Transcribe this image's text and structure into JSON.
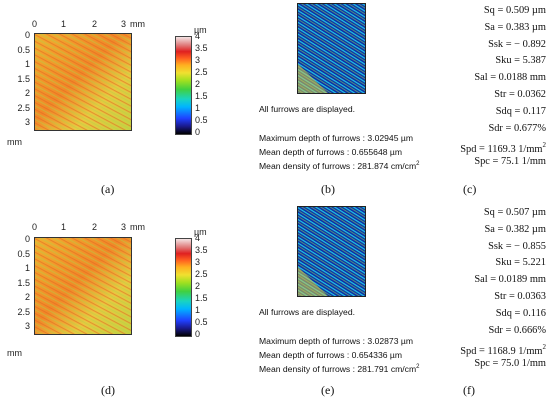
{
  "panels": [
    {
      "map": {
        "x_unit": "mm",
        "y_unit": "mm",
        "x_ticks": [
          "0",
          "1",
          "2",
          "3"
        ],
        "y_ticks": [
          "0",
          "0.5",
          "1",
          "1.5",
          "2",
          "2.5",
          "3"
        ],
        "colorbar_unit": "µm",
        "colorbar_ticks": [
          "4",
          "3.5",
          "3",
          "2.5",
          "2",
          "1.5",
          "1",
          "0.5",
          "0"
        ],
        "caption": "(a)"
      },
      "furrows": {
        "caption": "(b)",
        "status": "All furrows are displayed.",
        "max_depth": "Maximum depth of furrows : 3.02945 µm",
        "mean_depth": "Mean depth of furrows : 0.655648 µm",
        "mean_density_prefix": "Mean density of furrows : 281.874 cm/cm",
        "mean_density_exp": "2"
      },
      "params": {
        "caption": "(c)",
        "rows": [
          {
            "k": "Sq",
            "v": "0.509 µm"
          },
          {
            "k": "Sa",
            "v": "0.383 µm"
          },
          {
            "k": "Ssk",
            "v": "− 0.892"
          },
          {
            "k": "Sku",
            "v": "5.387"
          },
          {
            "k": "Sal",
            "v": "0.0188 mm"
          },
          {
            "k": "Str",
            "v": "0.0362"
          },
          {
            "k": "Sdq",
            "v": "0.117"
          },
          {
            "k": "Sdr",
            "v": "0.677%"
          },
          {
            "k": "Spd",
            "v": "1169.3 1/mm",
            "sup": "2"
          },
          {
            "k": "Spc",
            "v": "75.1 1/mm"
          }
        ]
      }
    },
    {
      "map": {
        "x_unit": "mm",
        "y_unit": "mm",
        "x_ticks": [
          "0",
          "1",
          "2",
          "3"
        ],
        "y_ticks": [
          "0",
          "0.5",
          "1",
          "1.5",
          "2",
          "2.5",
          "3"
        ],
        "colorbar_unit": "µm",
        "colorbar_ticks": [
          "4",
          "3.5",
          "3",
          "2.5",
          "2",
          "1.5",
          "1",
          "0.5",
          "0"
        ],
        "caption": "(d)"
      },
      "furrows": {
        "caption": "(e)",
        "status": "All furrows are displayed.",
        "max_depth": "Maximum depth of furrows : 3.02873 µm",
        "mean_depth": "Mean depth of furrows : 0.654336 µm",
        "mean_density_prefix": "Mean density of furrows : 281.791 cm/cm",
        "mean_density_exp": "2"
      },
      "params": {
        "caption": "(f)",
        "rows": [
          {
            "k": "Sq",
            "v": "0.507 µm"
          },
          {
            "k": "Sa",
            "v": "0.382 µm"
          },
          {
            "k": "Ssk",
            "v": "− 0.855"
          },
          {
            "k": "Sku",
            "v": "5.221"
          },
          {
            "k": "Sal",
            "v": "0.0189 mm"
          },
          {
            "k": "Str",
            "v": "0.0363"
          },
          {
            "k": "Sdq",
            "v": "0.116"
          },
          {
            "k": "Sdr",
            "v": "0.666%"
          },
          {
            "k": "Spd",
            "v": "1168.9 1/mm",
            "sup": "2"
          },
          {
            "k": "Spc",
            "v": "75.0 1/mm"
          }
        ]
      }
    }
  ]
}
